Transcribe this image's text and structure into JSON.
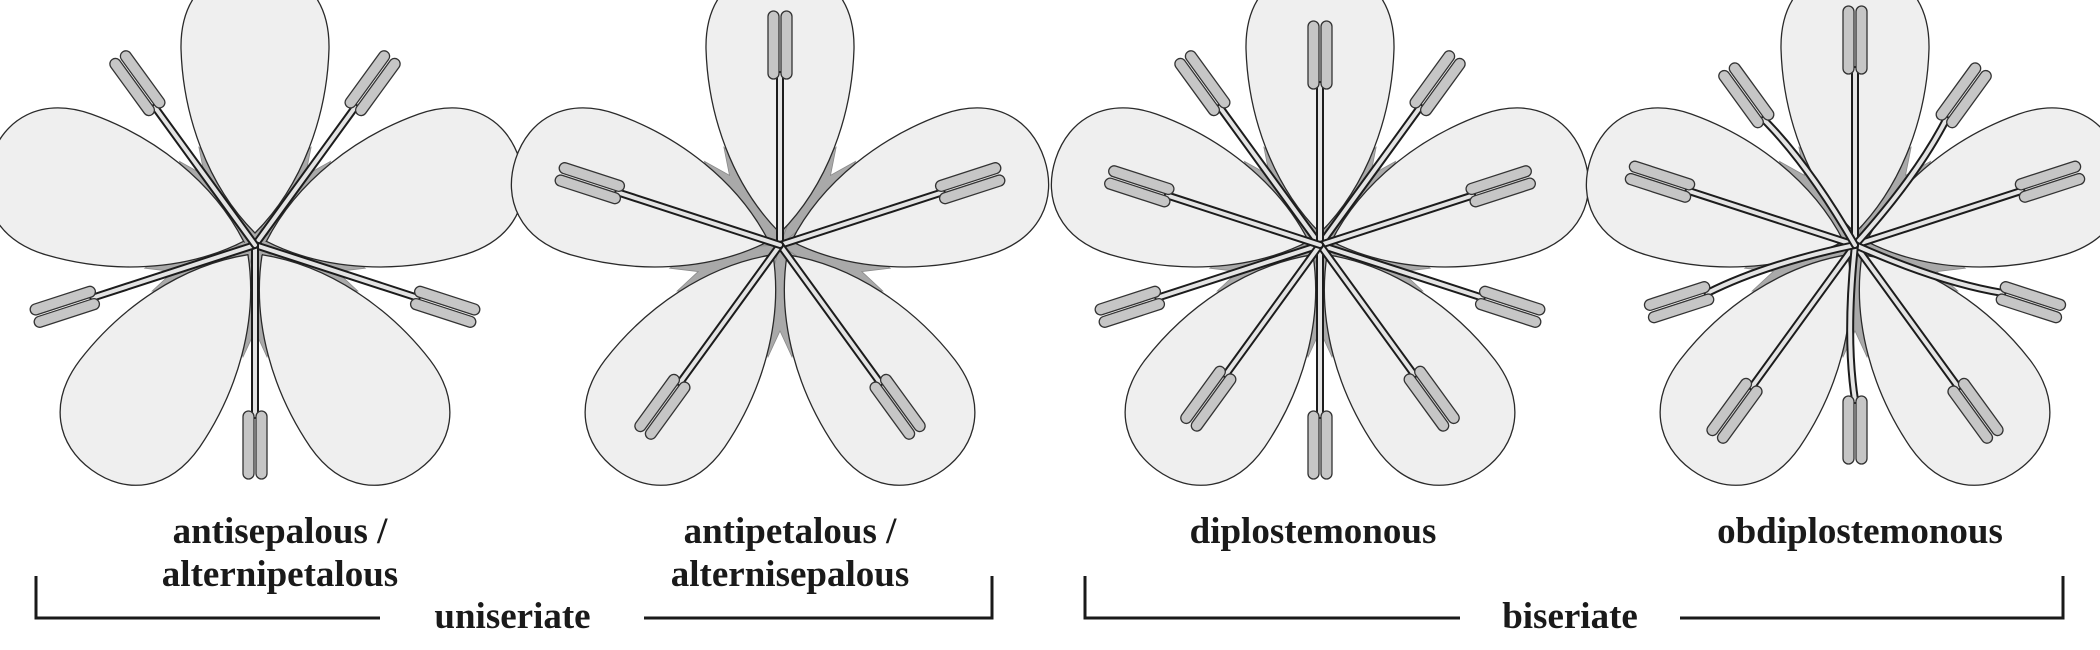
{
  "flowers": [
    {
      "id": "antisepalous",
      "label_line1": "antisepalous /",
      "label_line2": "alternipetalous",
      "stamens": "antisepalous"
    },
    {
      "id": "antipetalous",
      "label_line1": "antipetalous /",
      "label_line2": "alternisepalous",
      "stamens": "antipetalous"
    },
    {
      "id": "diplostemonous",
      "label_line1": "diplostemonous",
      "label_line2": "",
      "stamens": "diplostemonous"
    },
    {
      "id": "obdiplostemonous",
      "label_line1": "obdiplostemonous",
      "label_line2": "",
      "stamens": "obdiplostemonous"
    }
  ],
  "groups": {
    "uniseriate": "uniseriate",
    "biseriate": "biseriate"
  },
  "colors": {
    "petal_fill": "#efefef",
    "sepal_fill": "#a9a9a9",
    "anther_fill": "#c6c6c6",
    "outline": "#1c1c1c"
  }
}
